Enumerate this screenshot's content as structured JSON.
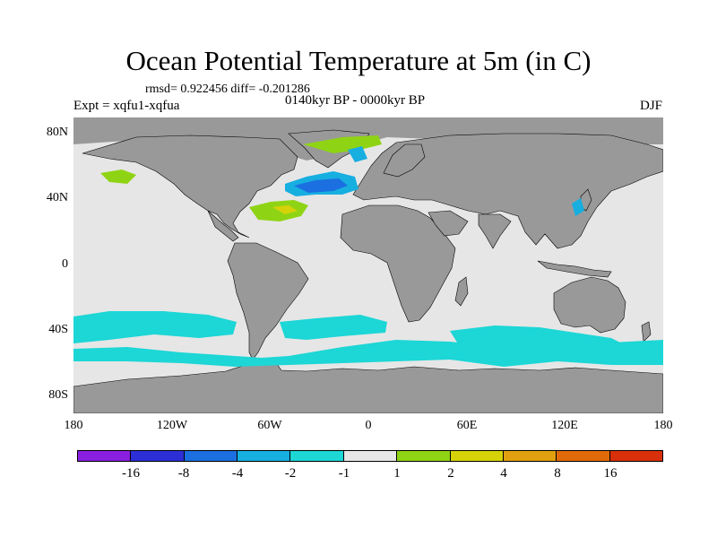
{
  "title": "Ocean Potential Temperature at 5m (in C)",
  "stats": "rmsd= 0.922456 diff= -0.201286",
  "expt": "Expt = xqfu1-xqfua",
  "period": "0140kyr BP - 0000kyr BP",
  "season": "DJF",
  "lat_labels": [
    "80N",
    "40N",
    "0",
    "40S",
    "80S"
  ],
  "lon_labels": [
    "180",
    "120W",
    "60W",
    "0",
    "60E",
    "120E",
    "180"
  ],
  "colorbar": {
    "colors": [
      "#8a1fe0",
      "#2c2fd6",
      "#1b6fe0",
      "#17aee0",
      "#1dd6d6",
      "#e6e6e6",
      "#8fd414",
      "#d6d20a",
      "#e0a010",
      "#e06a0a",
      "#d8300a"
    ],
    "labels": [
      "-16",
      "-8",
      "-4",
      "-2",
      "-1",
      "1",
      "2",
      "4",
      "8",
      "16"
    ]
  },
  "map_colors": {
    "land": "#999999",
    "ocean": "#e6e6e6",
    "cool_1": "#1dd6d6",
    "cool_2": "#17aee0",
    "cool_3": "#1b6fe0",
    "warm_1": "#8fd414",
    "warm_2": "#d6d20a",
    "warm_3": "#e0a010"
  }
}
